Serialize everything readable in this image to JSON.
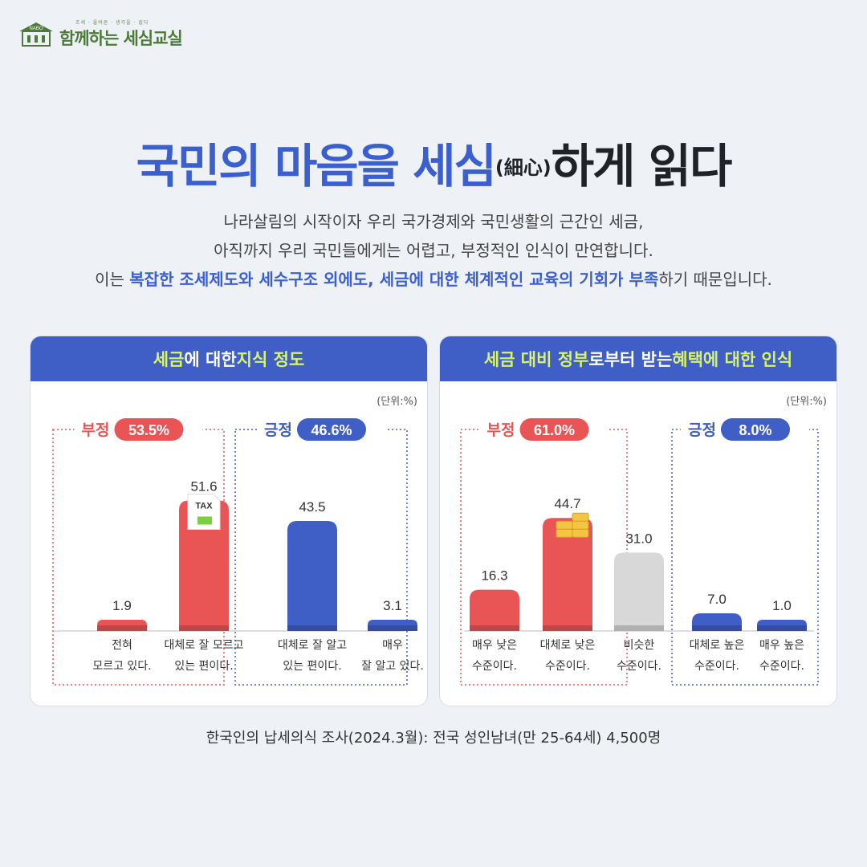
{
  "logo": {
    "tagline": "조세 · 올바른 · 생각을 · 쉽다",
    "title": "함께하는 세심교실",
    "badge": "NABO"
  },
  "headline": {
    "part1": "국민의 마음을 세심",
    "part2": "(細心)",
    "part3": "하게 읽다"
  },
  "intro": {
    "line1": "나라살림의 시작이자 우리 국가경제와 국민생활의 근간인 세금,",
    "line2": "아직까지 우리 국민들에게는 어렵고, 부정적인 인식이 만연합니다.",
    "line3_pre": "이는 ",
    "line3_em1": "복잡한 조세제도와 세수구조 외에도, 세금에 대한 체계적인 교육의 기회가 부족",
    "line3_post": "하기 때문입니다."
  },
  "panels": {
    "left": {
      "title_hl1": "세금",
      "title_mid": "에 대한 ",
      "title_hl2": "지식 정도",
      "unit": "(단위:%)"
    },
    "right": {
      "title_hl1": "세금 대비 정부",
      "title_mid": "로부터 받는 ",
      "title_hl2": "혜택에 대한 인식",
      "unit": "(단위:%)"
    }
  },
  "icons": {
    "tax_doc": "tax-document-icon",
    "tax_label": "TAX",
    "coins": "coin-stack-icon"
  },
  "colors": {
    "negative": "#e95555",
    "positive": "#3f5ec6",
    "neutral": "#d8d8d8",
    "accent_text": "#d9f36a"
  },
  "chart_data": [
    {
      "type": "bar",
      "title": "세금에 대한 지식 정도",
      "unit": "(단위:%)",
      "categories": [
        "전혀\n모르고 있다.",
        "대체로 잘 모르고\n있는 편이다.",
        "대체로 잘 알고\n있는 편이다.",
        "매우\n잘 알고 있다."
      ],
      "values": [
        1.9,
        51.6,
        43.5,
        3.1
      ],
      "value_labels": [
        "1.9",
        "51.6",
        "43.5",
        "3.1"
      ],
      "bar_colors": [
        "#e95555",
        "#e95555",
        "#3f5ec6",
        "#3f5ec6"
      ],
      "groups": [
        {
          "label": "부정",
          "value_label": "53.5%",
          "color": "#e95555",
          "members": [
            0,
            1
          ]
        },
        {
          "label": "긍정",
          "value_label": "46.6%",
          "color": "#3f5ec6",
          "members": [
            2,
            3
          ]
        }
      ],
      "ylim": [
        0,
        60
      ]
    },
    {
      "type": "bar",
      "title": "세금 대비 정부로부터 받는 혜택에 대한 인식",
      "unit": "(단위:%)",
      "categories": [
        "매우 낮은\n수준이다.",
        "대체로 낮은\n수준이다.",
        "비슷한\n수준이다.",
        "대체로 높은\n수준이다.",
        "매우 높은\n수준이다."
      ],
      "values": [
        16.3,
        44.7,
        31.0,
        7.0,
        1.0
      ],
      "value_labels": [
        "16.3",
        "44.7",
        "31.0",
        "7.0",
        "1.0"
      ],
      "bar_colors": [
        "#e95555",
        "#e95555",
        "#d8d8d8",
        "#3f5ec6",
        "#3f5ec6"
      ],
      "groups": [
        {
          "label": "부정",
          "value_label": "61.0%",
          "color": "#e95555",
          "members": [
            0,
            1
          ]
        },
        {
          "label": "긍정",
          "value_label": "8.0%",
          "color": "#3f5ec6",
          "members": [
            3,
            4
          ]
        }
      ],
      "ylim": [
        0,
        60
      ]
    }
  ],
  "footer": "한국인의 납세의식 조사(2024.3월): 전국 성인남녀(만 25-64세) 4,500명"
}
